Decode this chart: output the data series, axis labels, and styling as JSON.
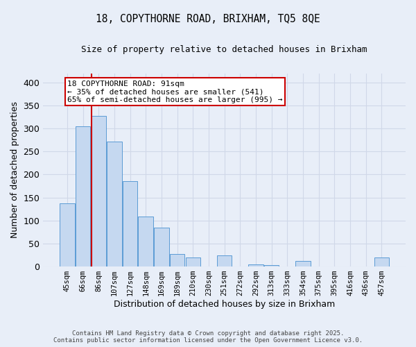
{
  "title_line1": "18, COPYTHORNE ROAD, BRIXHAM, TQ5 8QE",
  "title_line2": "Size of property relative to detached houses in Brixham",
  "xlabel": "Distribution of detached houses by size in Brixham",
  "ylabel": "Number of detached properties",
  "categories": [
    "45sqm",
    "66sqm",
    "86sqm",
    "107sqm",
    "127sqm",
    "148sqm",
    "169sqm",
    "189sqm",
    "210sqm",
    "230sqm",
    "251sqm",
    "272sqm",
    "292sqm",
    "313sqm",
    "333sqm",
    "354sqm",
    "375sqm",
    "395sqm",
    "416sqm",
    "436sqm",
    "457sqm"
  ],
  "values": [
    138,
    305,
    328,
    271,
    185,
    108,
    84,
    27,
    19,
    0,
    25,
    0,
    5,
    3,
    0,
    12,
    0,
    0,
    0,
    0,
    20
  ],
  "bar_color": "#c5d8f0",
  "bar_edge_color": "#5b9bd5",
  "highlight_index": 2,
  "highlight_color": "#cc0000",
  "ylim": [
    0,
    420
  ],
  "yticks": [
    0,
    50,
    100,
    150,
    200,
    250,
    300,
    350,
    400
  ],
  "annotation_title": "18 COPYTHORNE ROAD: 91sqm",
  "annotation_line2": "← 35% of detached houses are smaller (541)",
  "annotation_line3": "65% of semi-detached houses are larger (995) →",
  "annotation_box_color": "#ffffff",
  "annotation_box_edge": "#cc0000",
  "footer_line1": "Contains HM Land Registry data © Crown copyright and database right 2025.",
  "footer_line2": "Contains public sector information licensed under the Open Government Licence v3.0.",
  "background_color": "#e8eef8",
  "grid_color": "#d0d8e8",
  "figsize": [
    6.0,
    5.0
  ],
  "dpi": 100
}
